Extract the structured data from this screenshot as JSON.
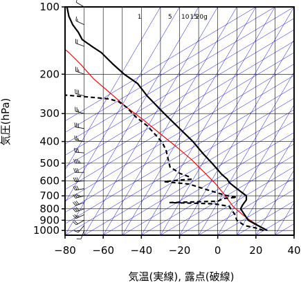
{
  "chart_data": {
    "type": "line",
    "xlabel": "気温(実線), 露点(破線)",
    "ylabel": "気圧(hPa)",
    "xlim": [
      -80,
      40
    ],
    "ylim": [
      1050,
      100
    ],
    "y_scale": "log",
    "x_ticks": [
      -80,
      -60,
      -40,
      -20,
      0,
      20,
      40
    ],
    "x_tick_labels": [
      "−80",
      "−60",
      "−40",
      "−20",
      "0",
      "20",
      "40"
    ],
    "y_ticks": [
      100,
      200,
      300,
      400,
      500,
      600,
      700,
      800,
      900,
      1000
    ],
    "y_tick_labels": [
      "100",
      "200",
      "300",
      "400",
      "500",
      "600",
      "700",
      "800",
      "900",
      "1000"
    ],
    "mixing_ratio_labels": [
      "1",
      "5",
      "10",
      "15",
      "20g"
    ],
    "mixing_ratio_label_t": [
      -41,
      -25,
      -17,
      -12.5,
      -8.5
    ],
    "colors": {
      "temperature": "#000000",
      "dewpoint": "#000000",
      "parcel": "#ff0000",
      "reference_lines": "#0000ff",
      "grid": "#000000",
      "wind": "#000000"
    },
    "series": [
      {
        "style": "solid",
        "points": [
          [
            26,
            1000
          ],
          [
            23,
            970
          ],
          [
            19,
            930
          ],
          [
            16,
            900
          ],
          [
            14,
            850
          ],
          [
            12,
            800
          ],
          [
            13,
            770
          ],
          [
            15,
            730
          ],
          [
            15,
            700
          ],
          [
            12,
            670
          ],
          [
            9,
            640
          ],
          [
            6,
            610
          ],
          [
            5,
            590
          ],
          [
            2,
            560
          ],
          [
            -3,
            500
          ],
          [
            -8,
            450
          ],
          [
            -13,
            400
          ],
          [
            -20,
            350
          ],
          [
            -28,
            300
          ],
          [
            -37,
            250
          ],
          [
            -42,
            220
          ],
          [
            -49,
            200
          ],
          [
            -55,
            180
          ],
          [
            -61,
            160
          ],
          [
            -66,
            150
          ],
          [
            -71,
            140
          ],
          [
            -73,
            130
          ],
          [
            -76,
            120
          ],
          [
            -78,
            110
          ],
          [
            -79,
            100
          ]
        ]
      },
      {
        "style": "dashed",
        "points": [
          [
            24,
            1000
          ],
          [
            20,
            975
          ],
          [
            14,
            950
          ],
          [
            10,
            900
          ],
          [
            9,
            850
          ],
          [
            6,
            780
          ],
          [
            -2,
            760
          ],
          [
            -25,
            750
          ],
          [
            0,
            740
          ],
          [
            3,
            720
          ],
          [
            10,
            710
          ],
          [
            5,
            700
          ],
          [
            0,
            680
          ],
          [
            -5,
            660
          ],
          [
            -10,
            640
          ],
          [
            -15,
            620
          ],
          [
            -28,
            605
          ],
          [
            -20,
            595
          ],
          [
            -14,
            590
          ],
          [
            -15,
            575
          ],
          [
            -20,
            555
          ],
          [
            -22,
            540
          ],
          [
            -25,
            520
          ],
          [
            -26,
            480
          ],
          [
            -27,
            440
          ],
          [
            -29,
            405
          ],
          [
            -33,
            370
          ],
          [
            -37,
            340
          ],
          [
            -43,
            310
          ],
          [
            -48,
            280
          ],
          [
            -52,
            265
          ],
          [
            -57,
            258
          ],
          [
            -63,
            255
          ],
          [
            -70,
            252
          ],
          [
            -75,
            250
          ],
          [
            -80,
            248
          ]
        ]
      },
      {
        "style": "solid-red",
        "points": [
          [
            26,
            1000
          ],
          [
            22,
            960
          ],
          [
            17,
            900
          ],
          [
            13,
            850
          ],
          [
            8,
            780
          ],
          [
            4,
            700
          ],
          [
            -1,
            620
          ],
          [
            -7,
            550
          ],
          [
            -14,
            480
          ],
          [
            -22,
            420
          ],
          [
            -30,
            370
          ],
          [
            -39,
            320
          ],
          [
            -48,
            280
          ],
          [
            -57,
            240
          ],
          [
            -65,
            210
          ],
          [
            -72,
            180
          ],
          [
            -78,
            160
          ],
          [
            -80,
            155
          ]
        ]
      }
    ],
    "wind_barbs": [
      {
        "p": 1000,
        "dir": 200,
        "spd": 10
      },
      {
        "p": 950,
        "dir": 220,
        "spd": 15
      },
      {
        "p": 900,
        "dir": 240,
        "spd": 20
      },
      {
        "p": 850,
        "dir": 245,
        "spd": 25
      },
      {
        "p": 800,
        "dir": 250,
        "spd": 30
      },
      {
        "p": 750,
        "dir": 250,
        "spd": 30
      },
      {
        "p": 700,
        "dir": 255,
        "spd": 35
      },
      {
        "p": 650,
        "dir": 260,
        "spd": 30
      },
      {
        "p": 600,
        "dir": 265,
        "spd": 30
      },
      {
        "p": 550,
        "dir": 270,
        "spd": 30
      },
      {
        "p": 500,
        "dir": 270,
        "spd": 35
      },
      {
        "p": 450,
        "dir": 275,
        "spd": 30
      },
      {
        "p": 400,
        "dir": 280,
        "spd": 25
      },
      {
        "p": 350,
        "dir": 280,
        "spd": 30
      },
      {
        "p": 300,
        "dir": 285,
        "spd": 25
      },
      {
        "p": 250,
        "dir": 285,
        "spd": 30
      },
      {
        "p": 200,
        "dir": 290,
        "spd": 25
      },
      {
        "p": 150,
        "dir": 290,
        "spd": 20
      },
      {
        "p": 120,
        "dir": 295,
        "spd": 15
      },
      {
        "p": 100,
        "dir": 300,
        "spd": 10
      }
    ]
  }
}
